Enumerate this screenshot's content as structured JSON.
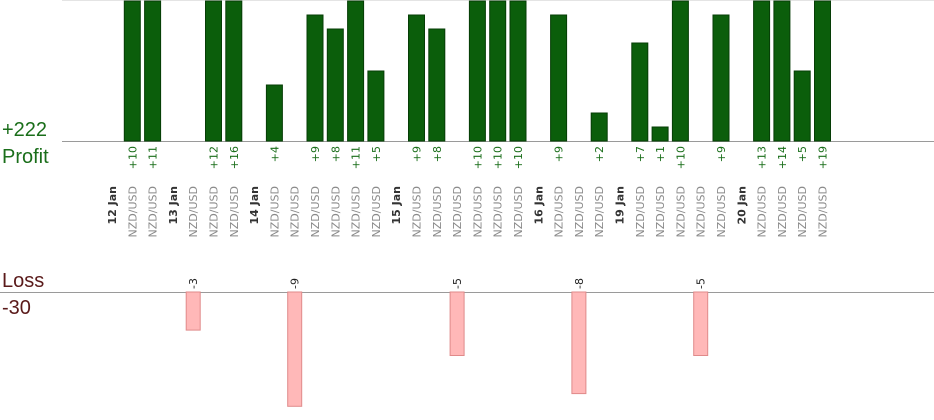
{
  "labels": {
    "profit_total": "+222",
    "profit_label": "Profit",
    "loss_label": "Loss",
    "loss_total": "-30"
  },
  "colors": {
    "profit_bar": "#0b5e0b",
    "profit_bar_edge": "#063d06",
    "profit_text": "#1a6e1a",
    "loss_bar": "#ffb8b8",
    "loss_bar_edge": "#e08a8a",
    "loss_text": "#5a1a1a",
    "axis": "#9a9a9a"
  },
  "chart_data": {
    "type": "bar",
    "profit_scale_max": 10,
    "loss_scale_max": 9,
    "columns": [
      {
        "kind": "date",
        "label": "12 Jan"
      },
      {
        "kind": "trade",
        "instrument": "NZD/USD",
        "profit": 10,
        "profit_label": "+10"
      },
      {
        "kind": "trade",
        "instrument": "NZD/USD",
        "profit": 11,
        "profit_label": "+11"
      },
      {
        "kind": "date",
        "label": "13 Jan"
      },
      {
        "kind": "trade",
        "instrument": "NZD/USD",
        "loss": 3,
        "loss_label": "-3"
      },
      {
        "kind": "trade",
        "instrument": "NZD/USD",
        "profit": 12,
        "profit_label": "+12"
      },
      {
        "kind": "trade",
        "instrument": "NZD/USD",
        "profit": 16,
        "profit_label": "+16"
      },
      {
        "kind": "date",
        "label": "14 Jan"
      },
      {
        "kind": "trade",
        "instrument": "NZD/USD",
        "profit": 4,
        "profit_label": "+4"
      },
      {
        "kind": "trade",
        "instrument": "NZD/USD",
        "loss": 9,
        "loss_label": "-9"
      },
      {
        "kind": "trade",
        "instrument": "NZD/USD",
        "profit": 9,
        "profit_label": "+9"
      },
      {
        "kind": "trade",
        "instrument": "NZD/USD",
        "profit": 8,
        "profit_label": "+8"
      },
      {
        "kind": "trade",
        "instrument": "NZD/USD",
        "profit": 11,
        "profit_label": "+11"
      },
      {
        "kind": "trade",
        "instrument": "NZD/USD",
        "profit": 5,
        "profit_label": "+5"
      },
      {
        "kind": "date",
        "label": "15 Jan"
      },
      {
        "kind": "trade",
        "instrument": "NZD/USD",
        "profit": 9,
        "profit_label": "+9"
      },
      {
        "kind": "trade",
        "instrument": "NZD/USD",
        "profit": 8,
        "profit_label": "+8"
      },
      {
        "kind": "trade",
        "instrument": "NZD/USD",
        "loss": 5,
        "loss_label": "-5"
      },
      {
        "kind": "trade",
        "instrument": "NZD/USD",
        "profit": 10,
        "profit_label": "+10"
      },
      {
        "kind": "trade",
        "instrument": "NZD/USD",
        "profit": 10,
        "profit_label": "+10"
      },
      {
        "kind": "trade",
        "instrument": "NZD/USD",
        "profit": 10,
        "profit_label": "+10"
      },
      {
        "kind": "date",
        "label": "16 Jan"
      },
      {
        "kind": "trade",
        "instrument": "NZD/USD",
        "profit": 9,
        "profit_label": "+9"
      },
      {
        "kind": "trade",
        "instrument": "NZD/USD",
        "loss": 8,
        "loss_label": "-8"
      },
      {
        "kind": "trade",
        "instrument": "NZD/USD",
        "profit": 2,
        "profit_label": "+2"
      },
      {
        "kind": "date",
        "label": "19 Jan"
      },
      {
        "kind": "trade",
        "instrument": "NZD/USD",
        "profit": 7,
        "profit_label": "+7"
      },
      {
        "kind": "trade",
        "instrument": "NZD/USD",
        "profit": 1,
        "profit_label": "+1"
      },
      {
        "kind": "trade",
        "instrument": "NZD/USD",
        "profit": 10,
        "profit_label": "+10"
      },
      {
        "kind": "trade",
        "instrument": "NZD/USD",
        "loss": 5,
        "loss_label": "-5"
      },
      {
        "kind": "trade",
        "instrument": "NZD/USD",
        "profit": 9,
        "profit_label": "+9"
      },
      {
        "kind": "date",
        "label": "20 Jan"
      },
      {
        "kind": "trade",
        "instrument": "NZD/USD",
        "profit": 13,
        "profit_label": "+13"
      },
      {
        "kind": "trade",
        "instrument": "NZD/USD",
        "profit": 14,
        "profit_label": "+14"
      },
      {
        "kind": "trade",
        "instrument": "NZD/USD",
        "profit": 5,
        "profit_label": "+5"
      },
      {
        "kind": "trade",
        "instrument": "NZD/USD",
        "profit": 19,
        "profit_label": "+19"
      }
    ]
  }
}
